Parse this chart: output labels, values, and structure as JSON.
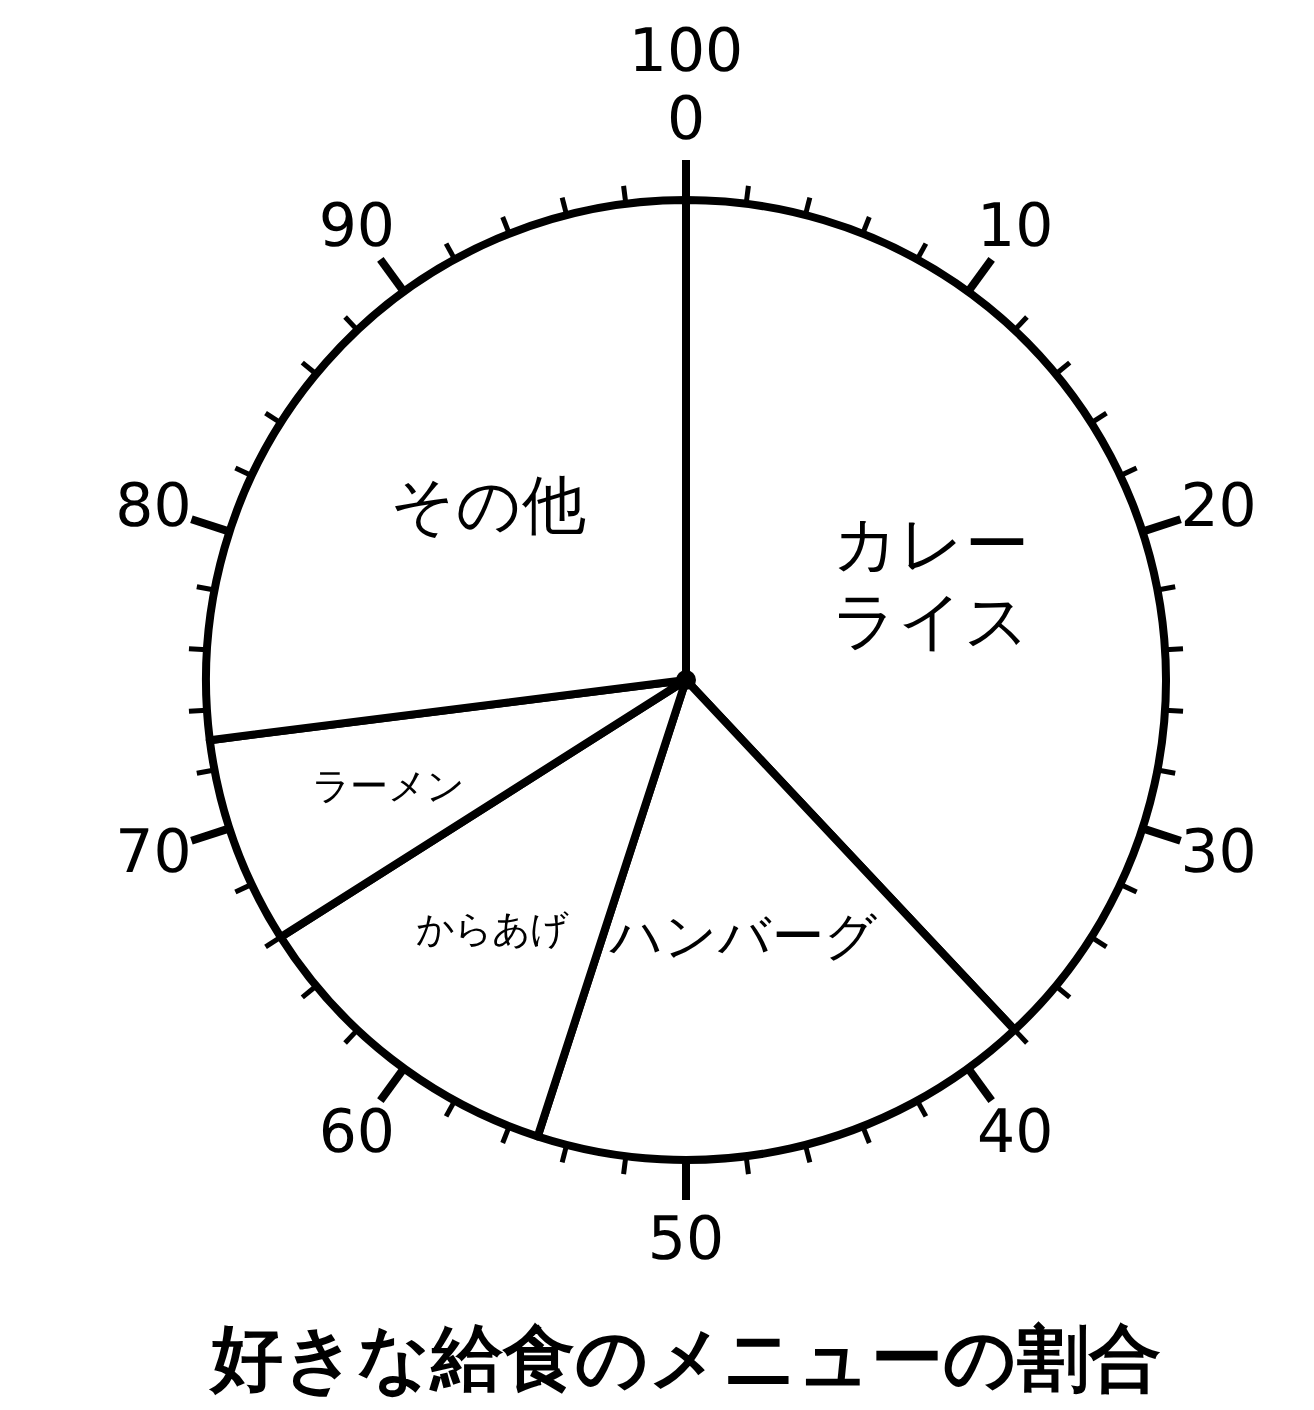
{
  "chart_data": {
    "type": "pie",
    "title": "好きな給食のメニューの割合",
    "categories": [
      "カレーライス",
      "ハンバーグ",
      "からあげ",
      "ラーメン",
      "その他"
    ],
    "values": [
      38,
      17,
      11,
      7,
      27
    ],
    "colors": [
      "#ffffff",
      "#ffffff",
      "#ffffff",
      "#ffffff",
      "#ffffff"
    ],
    "annotations": [
      "0",
      "10",
      "20",
      "30",
      "40",
      "50",
      "60",
      "70",
      "80",
      "90",
      "100"
    ]
  }
}
